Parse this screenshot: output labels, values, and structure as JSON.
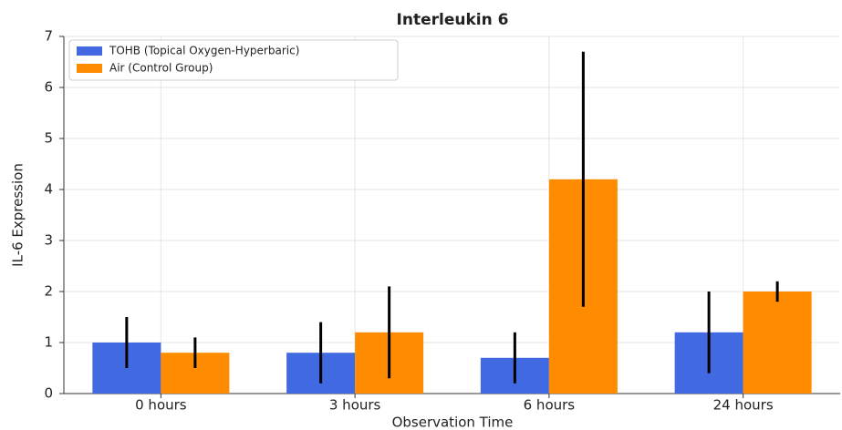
{
  "chart_data": {
    "type": "bar",
    "title": "Interleukin 6",
    "x_label": "Observation Time",
    "y_label": "IL-6 Expression",
    "categories": [
      "0 hours",
      "3 hours",
      "6 hours",
      "24 hours"
    ],
    "series": [
      {
        "name": "TOHB (Topical Oxygen-Hyperbaric)",
        "color": "#4169e1",
        "values": [
          1.0,
          0.8,
          0.7,
          1.2
        ],
        "errors": [
          0.5,
          0.6,
          0.5,
          0.8
        ]
      },
      {
        "name": "Air (Control Group)",
        "color": "#ff8c00",
        "values": [
          0.8,
          1.2,
          4.2,
          2.0
        ],
        "errors": [
          0.3,
          0.9,
          2.5,
          0.2
        ]
      }
    ],
    "ylim": [
      0,
      7
    ],
    "yticks": [
      0,
      1,
      2,
      3,
      4,
      5,
      6,
      7
    ],
    "grid": true,
    "legend": "upper left"
  }
}
